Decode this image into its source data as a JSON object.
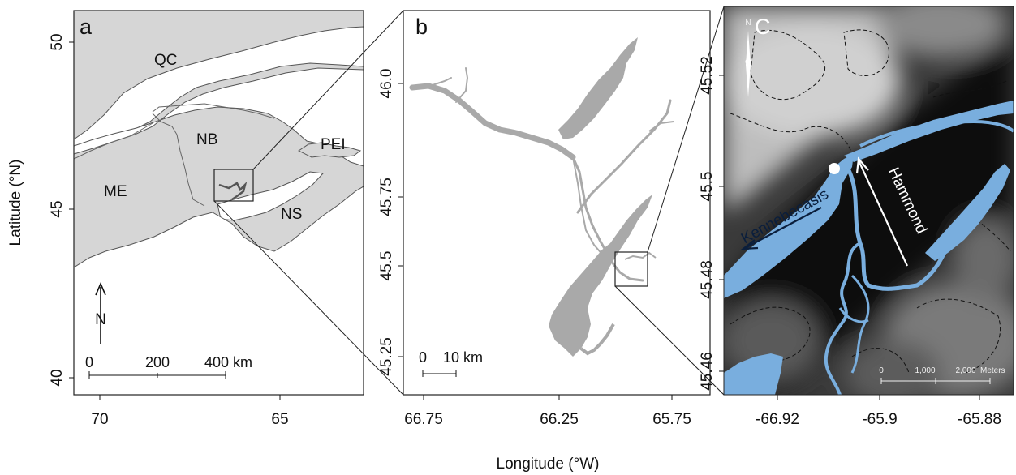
{
  "figure": {
    "ylabel": "Latitude (°N)",
    "xlabel": "Longitude (°W)"
  },
  "panel_a": {
    "letter": "a",
    "y_ticks": [
      "50",
      "45",
      "40"
    ],
    "x_ticks": [
      "70",
      "65"
    ],
    "regions": [
      "QC",
      "NB",
      "PEI",
      "ME",
      "NS"
    ],
    "north_label": "N",
    "scale_ticks": [
      "0",
      "200",
      "400 km"
    ],
    "colors": {
      "land": "#d6d6d6",
      "water": "#ffffff",
      "border": "#666666",
      "inset_river": "#555555"
    }
  },
  "panel_b": {
    "letter": "b",
    "y_ticks": [
      "46.0",
      "45.75",
      "45.5",
      "45.25"
    ],
    "x_ticks": [
      "66.75",
      "66.25",
      "65.75"
    ],
    "scale_ticks": [
      "0",
      "10 km"
    ],
    "colors": {
      "river": "#a9a9a9"
    }
  },
  "panel_c": {
    "letter": "C",
    "y_ticks": [
      "45.52",
      "45.5",
      "45.48",
      "45.46"
    ],
    "x_ticks": [
      "-66.92",
      "-65.9",
      "-65.88"
    ],
    "north_label": "N",
    "scale_ticks": [
      "0",
      "1,000",
      "2,000"
    ],
    "scale_unit": "Meters",
    "river_labels": [
      "Kennebecasis",
      "Hammond"
    ],
    "colors": {
      "water": "#79aede",
      "terrain_dark": "#0d0d0d",
      "terrain_light": "#c4c4c4"
    }
  }
}
